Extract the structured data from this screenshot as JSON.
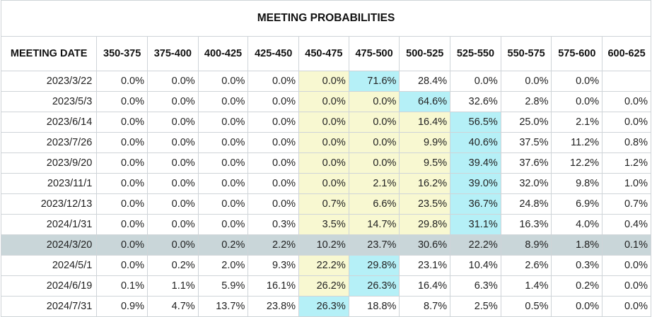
{
  "chart_data": {
    "type": "table",
    "title": "MEETING PROBABILITIES",
    "columns": [
      "MEETING DATE",
      "350-375",
      "375-400",
      "400-425",
      "425-450",
      "450-475",
      "475-500",
      "500-525",
      "525-550",
      "550-575",
      "575-600",
      "600-625"
    ],
    "rows": [
      {
        "date": "2023/3/22",
        "values": [
          "0.0%",
          "0.0%",
          "0.0%",
          "0.0%",
          "0.0%",
          "71.6%",
          "28.4%",
          "0.0%",
          "0.0%",
          "0.0%",
          ""
        ],
        "hi": [
          null,
          null,
          null,
          null,
          "y",
          "b",
          null,
          null,
          null,
          null,
          null
        ]
      },
      {
        "date": "2023/5/3",
        "values": [
          "0.0%",
          "0.0%",
          "0.0%",
          "0.0%",
          "0.0%",
          "0.0%",
          "64.6%",
          "32.6%",
          "2.8%",
          "0.0%",
          "0.0%"
        ],
        "hi": [
          null,
          null,
          null,
          null,
          "y",
          "y",
          "b",
          null,
          null,
          null,
          null
        ]
      },
      {
        "date": "2023/6/14",
        "values": [
          "0.0%",
          "0.0%",
          "0.0%",
          "0.0%",
          "0.0%",
          "0.0%",
          "16.4%",
          "56.5%",
          "25.0%",
          "2.1%",
          "0.0%"
        ],
        "hi": [
          null,
          null,
          null,
          null,
          "y",
          "y",
          "y",
          "b",
          null,
          null,
          null
        ]
      },
      {
        "date": "2023/7/26",
        "values": [
          "0.0%",
          "0.0%",
          "0.0%",
          "0.0%",
          "0.0%",
          "0.0%",
          "9.9%",
          "40.6%",
          "37.5%",
          "11.2%",
          "0.8%"
        ],
        "hi": [
          null,
          null,
          null,
          null,
          "y",
          "y",
          "y",
          "b",
          null,
          null,
          null
        ]
      },
      {
        "date": "2023/9/20",
        "values": [
          "0.0%",
          "0.0%",
          "0.0%",
          "0.0%",
          "0.0%",
          "0.0%",
          "9.5%",
          "39.4%",
          "37.6%",
          "12.2%",
          "1.2%"
        ],
        "hi": [
          null,
          null,
          null,
          null,
          "y",
          "y",
          "y",
          "b",
          null,
          null,
          null
        ]
      },
      {
        "date": "2023/11/1",
        "values": [
          "0.0%",
          "0.0%",
          "0.0%",
          "0.0%",
          "0.0%",
          "2.1%",
          "16.2%",
          "39.0%",
          "32.0%",
          "9.8%",
          "1.0%"
        ],
        "hi": [
          null,
          null,
          null,
          null,
          "y",
          "y",
          "y",
          "b",
          null,
          null,
          null
        ]
      },
      {
        "date": "2023/12/13",
        "values": [
          "0.0%",
          "0.0%",
          "0.0%",
          "0.0%",
          "0.7%",
          "6.6%",
          "23.5%",
          "36.7%",
          "24.8%",
          "6.9%",
          "0.7%"
        ],
        "hi": [
          null,
          null,
          null,
          null,
          "y",
          "y",
          "y",
          "b",
          null,
          null,
          null
        ]
      },
      {
        "date": "2024/1/31",
        "values": [
          "0.0%",
          "0.0%",
          "0.0%",
          "0.3%",
          "3.5%",
          "14.7%",
          "29.8%",
          "31.1%",
          "16.3%",
          "4.0%",
          "0.4%"
        ],
        "hi": [
          null,
          null,
          null,
          null,
          "y",
          "y",
          "y",
          "b",
          null,
          null,
          null
        ]
      },
      {
        "date": "2024/3/20",
        "values": [
          "0.0%",
          "0.0%",
          "0.2%",
          "2.2%",
          "10.2%",
          "23.7%",
          "30.6%",
          "22.2%",
          "8.9%",
          "1.8%",
          "0.1%"
        ],
        "hi": [
          null,
          null,
          null,
          null,
          null,
          null,
          null,
          null,
          null,
          null,
          null
        ],
        "highlight": true
      },
      {
        "date": "2024/5/1",
        "values": [
          "0.0%",
          "0.2%",
          "2.0%",
          "9.3%",
          "22.2%",
          "29.8%",
          "23.1%",
          "10.4%",
          "2.6%",
          "0.3%",
          "0.0%"
        ],
        "hi": [
          null,
          null,
          null,
          null,
          "y",
          "b",
          null,
          null,
          null,
          null,
          null
        ]
      },
      {
        "date": "2024/6/19",
        "values": [
          "0.1%",
          "1.1%",
          "5.9%",
          "16.1%",
          "26.2%",
          "26.3%",
          "16.4%",
          "6.3%",
          "1.4%",
          "0.2%",
          "0.0%"
        ],
        "hi": [
          null,
          null,
          null,
          null,
          "y",
          "b",
          null,
          null,
          null,
          null,
          null
        ]
      },
      {
        "date": "2024/7/31",
        "values": [
          "0.9%",
          "4.7%",
          "13.7%",
          "23.8%",
          "26.3%",
          "18.8%",
          "8.7%",
          "2.5%",
          "0.5%",
          "0.0%",
          "0.0%"
        ],
        "hi": [
          null,
          null,
          null,
          null,
          "b",
          null,
          null,
          null,
          null,
          null,
          null
        ]
      }
    ]
  }
}
